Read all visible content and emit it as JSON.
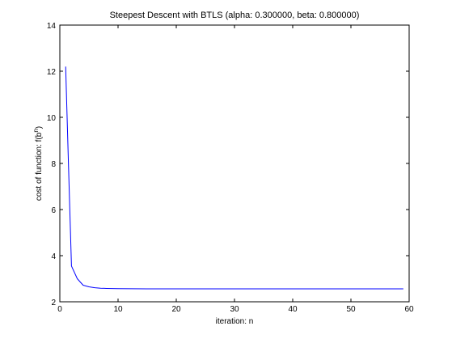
{
  "window": {
    "background_color": "#ffffff"
  },
  "chart_data": {
    "type": "line",
    "title": "Steepest Descent with BTLS (alpha: 0.300000, beta: 0.800000)",
    "xlabel": "iteration: n",
    "ylabel_main": "cost of function: f(b",
    "ylabel_sup": "n",
    "ylabel_close": ")",
    "xlim": [
      0,
      60
    ],
    "ylim": [
      2,
      14
    ],
    "xticks": [
      0,
      10,
      20,
      30,
      40,
      50,
      60
    ],
    "yticks": [
      2,
      4,
      6,
      8,
      10,
      12,
      14
    ],
    "grid": false,
    "legend": "none",
    "line_color": "#0000ff",
    "axes_color": "#000000",
    "series": [
      {
        "x": [
          1,
          1.5,
          2,
          3,
          4,
          5,
          6,
          7,
          8,
          10,
          15,
          20,
          30,
          40,
          50,
          59
        ],
        "y": [
          12.2,
          7.8,
          3.55,
          3.0,
          2.72,
          2.65,
          2.61,
          2.59,
          2.58,
          2.57,
          2.56,
          2.56,
          2.56,
          2.56,
          2.56,
          2.56
        ]
      }
    ]
  }
}
